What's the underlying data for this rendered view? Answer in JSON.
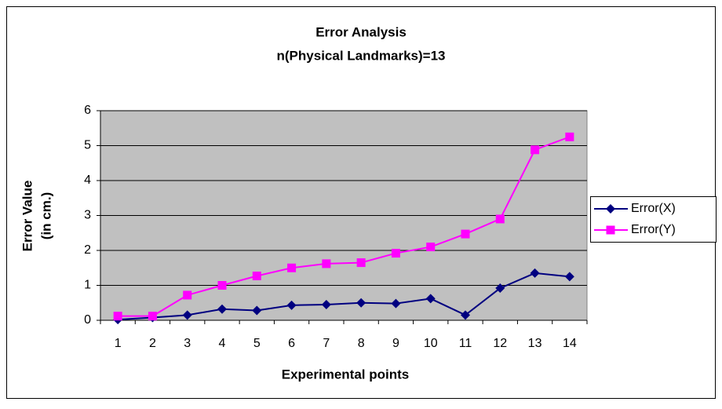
{
  "chart_data": {
    "type": "line",
    "title": [
      "Error Analysis",
      "n(Physical Landmarks)=13"
    ],
    "y_label": [
      "Error Value",
      "(in cm.)"
    ],
    "x_label": "Experimental points",
    "categories": [
      "1",
      "2",
      "3",
      "4",
      "5",
      "6",
      "7",
      "8",
      "9",
      "10",
      "11",
      "12",
      "13",
      "14"
    ],
    "series": [
      {
        "name": "Error(X)",
        "color": "#000080",
        "marker": "diamond",
        "values": [
          0.02,
          0.08,
          0.15,
          0.32,
          0.28,
          0.43,
          0.45,
          0.5,
          0.48,
          0.62,
          0.15,
          0.92,
          1.35,
          1.25
        ]
      },
      {
        "name": "Error(Y)",
        "color": "#ff00ff",
        "marker": "square",
        "values": [
          0.12,
          0.12,
          0.72,
          1.0,
          1.27,
          1.5,
          1.62,
          1.65,
          1.92,
          2.1,
          2.47,
          2.9,
          4.88,
          5.25
        ]
      }
    ],
    "ylim": [
      0,
      6
    ],
    "yticks": [
      0,
      1,
      2,
      3,
      4,
      5,
      6
    ],
    "grid": true,
    "legend": "right"
  }
}
